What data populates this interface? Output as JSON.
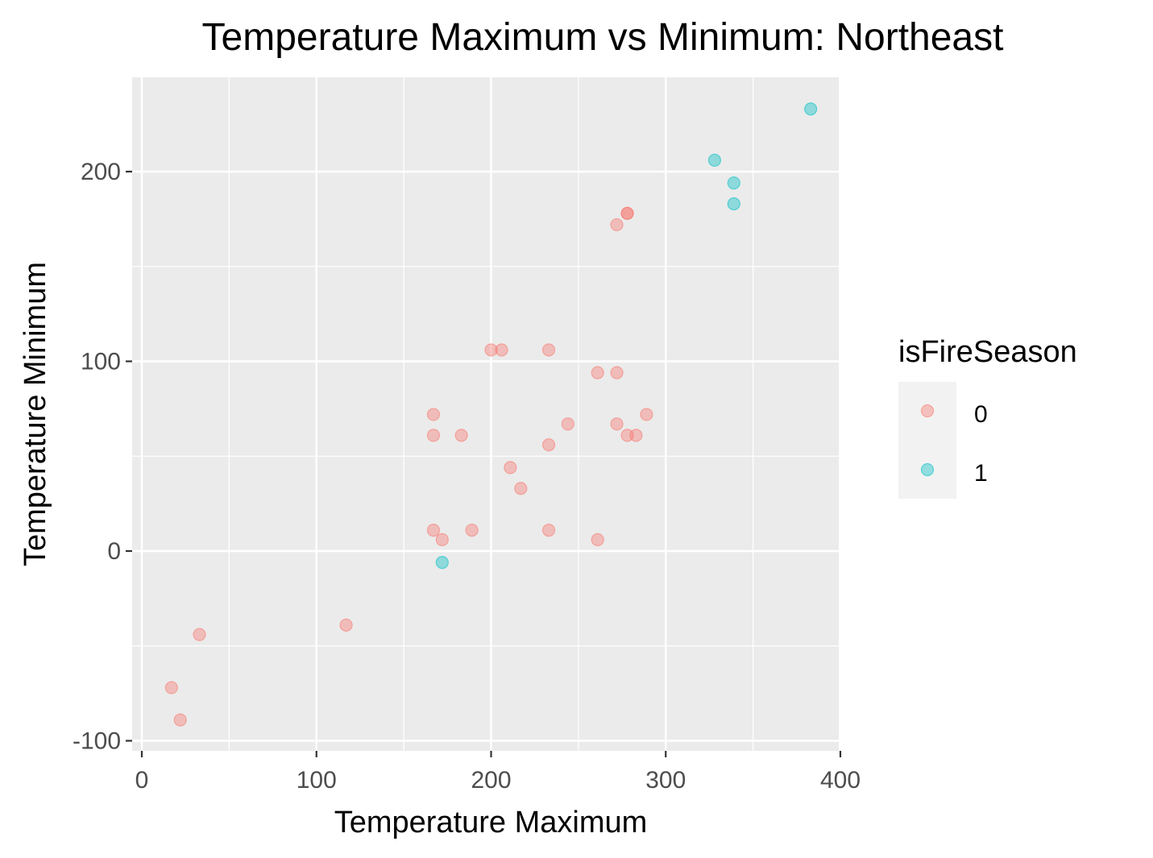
{
  "chart_data": {
    "type": "scatter",
    "title": "Temperature Maximum vs Minimum: Northeast",
    "xlabel": "Temperature Maximum",
    "ylabel": "Temperature Minimum",
    "xlim": [
      0,
      400
    ],
    "ylim": [
      -100,
      200
    ],
    "x_ticks": [
      0,
      100,
      200,
      300,
      400
    ],
    "y_ticks": [
      -100,
      0,
      100,
      200
    ],
    "x_tick_labels": [
      "0",
      "100",
      "200",
      "300",
      "400"
    ],
    "y_tick_labels": [
      "-100",
      "0",
      "100",
      "200"
    ],
    "grid": true,
    "legend": {
      "title": "isFireSeason",
      "placement": "right",
      "entries": [
        {
          "label": "0",
          "color": "#F8766D"
        },
        {
          "label": "1",
          "color": "#00BFC4"
        }
      ]
    },
    "series": [
      {
        "name": "0",
        "color": "#F8766D",
        "points": [
          [
            17,
            -72
          ],
          [
            22,
            -89
          ],
          [
            33,
            -44
          ],
          [
            117,
            -39
          ],
          [
            167,
            72
          ],
          [
            167,
            61
          ],
          [
            183,
            61
          ],
          [
            167,
            11
          ],
          [
            172,
            6
          ],
          [
            189,
            11
          ],
          [
            200,
            106
          ],
          [
            206,
            106
          ],
          [
            233,
            106
          ],
          [
            211,
            44
          ],
          [
            217,
            33
          ],
          [
            233,
            56
          ],
          [
            233,
            11
          ],
          [
            244,
            67
          ],
          [
            261,
            94
          ],
          [
            261,
            6
          ],
          [
            272,
            94
          ],
          [
            272,
            67
          ],
          [
            278,
            61
          ],
          [
            283,
            61
          ],
          [
            289,
            72
          ],
          [
            272,
            172
          ],
          [
            278,
            178
          ],
          [
            278,
            178
          ]
        ]
      },
      {
        "name": "1",
        "color": "#00BFC4",
        "points": [
          [
            172,
            -6
          ],
          [
            328,
            206
          ],
          [
            339,
            194
          ],
          [
            339,
            183
          ],
          [
            383,
            233
          ]
        ]
      }
    ]
  }
}
